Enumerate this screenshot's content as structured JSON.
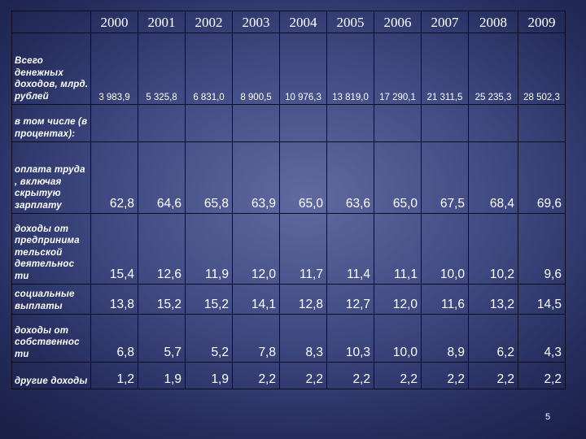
{
  "table": {
    "years": [
      "2000",
      "2001",
      "2002",
      "2003",
      "2004",
      "2005",
      "2006",
      "2007",
      "2008",
      "2009"
    ],
    "rows": [
      {
        "label": "Всего денежных доходов, млрд. рублей",
        "values": [
          "3 983,9",
          "5 325,8",
          "6 831,0",
          "8 900,5",
          "10 976,3",
          "13 819,0",
          "17 290,1",
          "21 311,5",
          "25 235,3",
          "28 502,3"
        ]
      },
      {
        "label": "в том числе (в процентах):",
        "values": [
          "",
          "",
          "",
          "",
          "",
          "",
          "",
          "",
          "",
          ""
        ]
      },
      {
        "label": "оплата труда , включая скрытую зарплату",
        "values": [
          "62,8",
          "64,6",
          "65,8",
          "63,9",
          "65,0",
          "63,6",
          "65,0",
          "67,5",
          "68,4",
          "69,6"
        ]
      },
      {
        "label": "доходы от предпринима тельской деятельнос ти",
        "values": [
          "15,4",
          "12,6",
          "11,9",
          "12,0",
          "11,7",
          "11,4",
          "11,1",
          "10,0",
          "10,2",
          "9,6"
        ]
      },
      {
        "label": "социальные выплаты",
        "values": [
          "13,8",
          "15,2",
          "15,2",
          "14,1",
          "12,8",
          "12,7",
          "12,0",
          "11,6",
          "13,2",
          "14,5"
        ]
      },
      {
        "label": "доходы от собственнос ти",
        "values": [
          "6,8",
          "5,7",
          "5,2",
          "7,8",
          "8,3",
          "10,3",
          "10,0",
          "8,9",
          "6,2",
          "4,3"
        ]
      },
      {
        "label": "другие доходы",
        "values": [
          "1,2",
          "1,9",
          "1,9",
          "2,2",
          "2,2",
          "2,2",
          "2,2",
          "2,2",
          "2,2",
          "2,2"
        ]
      }
    ]
  },
  "footer": {
    "page_number": "5"
  }
}
